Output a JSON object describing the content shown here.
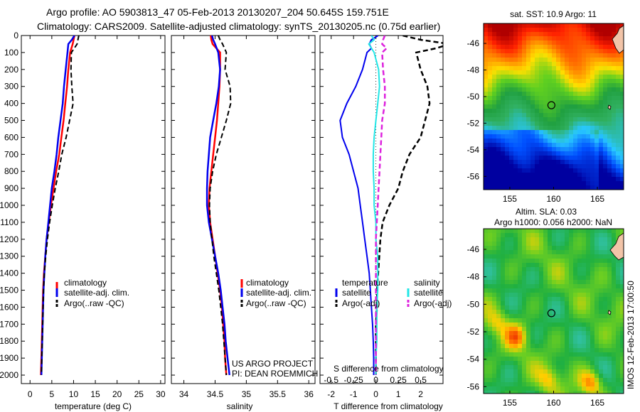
{
  "header": {
    "line1": "Argo profile: AO 5903813_47 05-Feb-2013 20130207_204 50.645S 159.751E",
    "line2": "Climatology: CARS2009. Satellite-adjusted climatology: synTS_20130205.nc (0.75d earlier)"
  },
  "credits": {
    "project": "US ARGO PROJECT",
    "pi": "PI: DEAN ROEMMICH",
    "stamp": "IMOS 12-Feb-2013 17:00:50"
  },
  "colors": {
    "climatology": "#ff0000",
    "satellite": "#0000ee",
    "argo": "#000000",
    "sal_satellite": "#22e6e6",
    "sal_argo": "#dd22dd"
  },
  "chart_data": [
    {
      "id": "temperature",
      "type": "line",
      "xlabel": "temperature (deg C)",
      "ylabel": "",
      "xlim": [
        -2,
        31
      ],
      "ylim": [
        2050,
        0
      ],
      "xticks": [
        0,
        5,
        10,
        15,
        20,
        25,
        30
      ],
      "yticks": [
        0,
        100,
        200,
        300,
        400,
        500,
        600,
        700,
        800,
        900,
        1000,
        1100,
        1200,
        1300,
        1400,
        1500,
        1600,
        1700,
        1800,
        1900,
        2000
      ],
      "grid": false,
      "legend": [
        "climatology",
        "satellite-adj. clim.",
        "Argo(..raw -QC)"
      ],
      "legend_position": "lower-middle",
      "y": [
        0,
        25,
        50,
        100,
        200,
        300,
        400,
        500,
        600,
        700,
        800,
        900,
        1000,
        1100,
        1200,
        1300,
        1400,
        1500,
        1600,
        1700,
        1800,
        1900,
        2000
      ],
      "series": [
        {
          "name": "climatology",
          "style": "solid",
          "values": [
            10.2,
            10.0,
            9.8,
            9.2,
            8.8,
            8.5,
            8.1,
            7.7,
            7.2,
            6.7,
            6.0,
            5.4,
            4.8,
            4.3,
            3.8,
            3.5,
            3.2,
            3.0,
            2.9,
            2.8,
            2.7,
            2.6,
            2.5
          ]
        },
        {
          "name": "satellite-adj. clim.",
          "style": "solid",
          "values": [
            10.2,
            9.6,
            8.8,
            8.6,
            8.2,
            7.8,
            7.5,
            7.0,
            6.5,
            6.1,
            5.6,
            5.0,
            4.6,
            4.2,
            3.8,
            3.5,
            3.3,
            3.1,
            3.0,
            2.9,
            2.8,
            2.7,
            2.6
          ]
        },
        {
          "name": "Argo(..raw -QC)",
          "style": "dashed",
          "values": [
            11.2,
            11.0,
            10.8,
            9.5,
            9.4,
            9.6,
            9.9,
            9.1,
            8.3,
            7.3,
            6.6,
            5.8,
            5.1,
            4.5,
            4.0,
            3.6,
            3.3,
            3.1,
            3.0,
            2.9,
            2.8,
            2.7,
            2.6
          ]
        }
      ]
    },
    {
      "id": "salinity",
      "type": "line",
      "xlabel": "salinity",
      "ylabel": "",
      "xlim": [
        33.8,
        36.1
      ],
      "ylim": [
        2050,
        0
      ],
      "xticks": [
        34,
        34.5,
        35,
        35.5,
        36
      ],
      "grid": false,
      "legend": [
        "climatology",
        "satellite-adj. clim.",
        "Argo(..raw -QC)"
      ],
      "legend_position": "lower-right",
      "y": [
        0,
        25,
        50,
        100,
        200,
        300,
        400,
        500,
        600,
        700,
        800,
        900,
        1000,
        1100,
        1200,
        1300,
        1400,
        1500,
        1600,
        1700,
        1800,
        1900,
        2000
      ],
      "series": [
        {
          "name": "climatology",
          "style": "solid",
          "values": [
            34.43,
            34.44,
            34.46,
            34.58,
            34.58,
            34.57,
            34.55,
            34.53,
            34.5,
            34.47,
            34.44,
            34.41,
            34.4,
            34.42,
            34.46,
            34.5,
            34.54,
            34.58,
            34.61,
            34.63,
            34.65,
            34.66,
            34.68
          ]
        },
        {
          "name": "satellite-adj. clim.",
          "style": "solid",
          "values": [
            34.45,
            34.47,
            34.5,
            34.55,
            34.58,
            34.56,
            34.52,
            34.47,
            34.42,
            34.4,
            34.38,
            34.37,
            34.37,
            34.4,
            34.45,
            34.5,
            34.55,
            34.59,
            34.62,
            34.65,
            34.67,
            34.7,
            34.73
          ]
        },
        {
          "name": "Argo(..raw -QC)",
          "style": "dashed",
          "values": [
            34.55,
            34.58,
            34.62,
            34.68,
            34.66,
            34.74,
            34.75,
            34.68,
            34.6,
            34.52,
            34.46,
            34.42,
            34.41,
            34.42,
            34.45,
            34.48,
            34.52,
            34.56,
            34.59,
            34.62,
            34.64,
            34.66,
            34.68
          ]
        }
      ]
    },
    {
      "id": "difference",
      "type": "line",
      "xlabel": "T difference from climatology",
      "xlabel_top": "S difference from climatology",
      "ylabel": "",
      "xlim": [
        -2.5,
        3.0
      ],
      "xlim_salinity": [
        -0.625,
        0.75
      ],
      "ylim": [
        2050,
        0
      ],
      "xticks": [
        -2,
        -1,
        0,
        1,
        2
      ],
      "xticks_salinity": [
        "-0.5",
        "-0.25",
        "0",
        "0.25",
        "0.5"
      ],
      "grid": false,
      "legend_title_temperature": "temperature",
      "legend_title_salinity": "salinity",
      "legend_position": "lower-middle",
      "y": [
        0,
        25,
        50,
        75,
        100,
        200,
        300,
        400,
        500,
        600,
        700,
        800,
        900,
        1000,
        1100,
        1200,
        1300,
        1400,
        1500,
        1600,
        1700,
        1800,
        1900,
        2000
      ],
      "series": [
        {
          "name": "satellite",
          "group": "temperature",
          "style": "solid",
          "values": [
            0.1,
            -0.2,
            -0.3,
            -0.2,
            -0.4,
            -0.6,
            -0.9,
            -1.3,
            -1.6,
            -1.5,
            -1.2,
            -1.0,
            -0.8,
            -0.7,
            -0.6,
            -0.5,
            -0.4,
            -0.3,
            -0.25,
            -0.2,
            -0.15,
            -0.12,
            -0.1,
            -0.1
          ]
        },
        {
          "name": "Argo(-adj)",
          "group": "temperature",
          "style": "dashed",
          "values": [
            1.2,
            2.0,
            3.3,
            2.7,
            1.8,
            2.0,
            2.3,
            2.4,
            2.2,
            2.0,
            1.5,
            1.2,
            1.0,
            0.6,
            0.3,
            0.2,
            0.15,
            0.1,
            0.05,
            0.05,
            0.0,
            0.0,
            0.0,
            0.0
          ]
        },
        {
          "name": "satellite",
          "group": "salinity",
          "style": "solid",
          "values": [
            -0.05,
            -0.02,
            -0.08,
            -0.05,
            -0.02,
            0.03,
            0.04,
            0.02,
            0.0,
            -0.02,
            -0.03,
            -0.03,
            -0.02,
            -0.02,
            0.0,
            0.0,
            0.02,
            0.02,
            0.02,
            0.01,
            0.01,
            0.01,
            0.0,
            0.0
          ]
        },
        {
          "name": "Argo(-adj)",
          "group": "salinity",
          "style": "dashed",
          "values": [
            0.1,
            0.08,
            0.07,
            0.12,
            0.07,
            0.08,
            0.1,
            0.1,
            0.07,
            0.06,
            0.05,
            0.04,
            0.03,
            0.02,
            0.01,
            0.0,
            0.0,
            0.0,
            0.0,
            0.0,
            0.0,
            0.0,
            0.0,
            0.0
          ]
        }
      ]
    },
    {
      "id": "sst-map",
      "type": "heatmap",
      "title": "sat. SST: 10.9 Argo: 11",
      "xlim": [
        152,
        168
      ],
      "ylim": [
        -57,
        -44.5
      ],
      "xticks": [
        155,
        160,
        165
      ],
      "yticks": [
        -46,
        -48,
        -50,
        -52,
        -54,
        -56
      ],
      "marker": {
        "lon": 159.75,
        "lat": -50.65
      },
      "colormap": [
        "#0000a0",
        "#0050ff",
        "#28c8ff",
        "#30b060",
        "#20a040",
        "#60d020",
        "#ffe000",
        "#ff8000",
        "#ff2000",
        "#b00000"
      ]
    },
    {
      "id": "sla-map",
      "type": "heatmap",
      "title": "Altim. SLA: 0.03",
      "subtitle": "Argo h1000: 0.056 h2000: NaN",
      "xlim": [
        152,
        168
      ],
      "ylim": [
        -56.5,
        -44.5
      ],
      "xticks": [
        155,
        160,
        165
      ],
      "yticks": [
        -46,
        -48,
        -50,
        -52,
        -54,
        -56
      ],
      "marker": {
        "lon": 159.75,
        "lat": -50.65
      },
      "colormap": [
        "#40b0ff",
        "#30c0a0",
        "#20b040",
        "#70d020",
        "#ffd000",
        "#ff7000",
        "#e01000"
      ]
    }
  ]
}
